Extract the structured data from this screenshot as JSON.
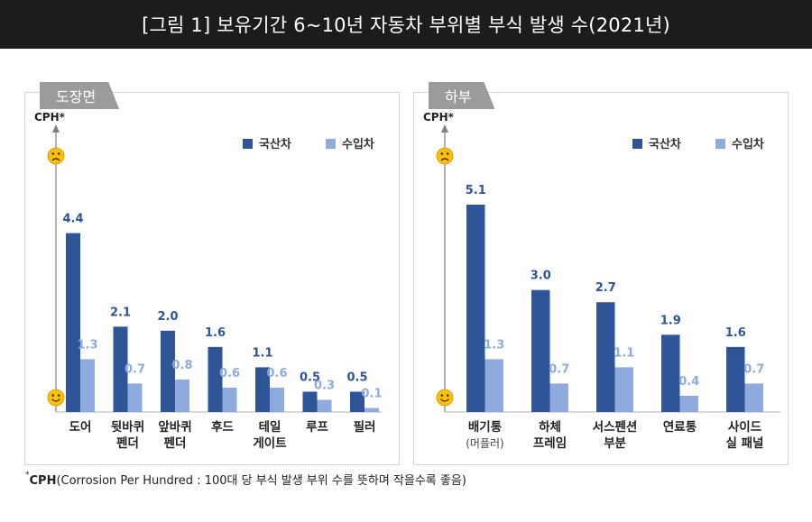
{
  "title": "[그림 1] 보유기간 6~10년 자동차 부위별 부식 발생 수(2021년)",
  "footnote": {
    "star": "*",
    "bold": "CPH",
    "rest": "(Corrosion Per Hundred : 100대 당 부식 발생 부위 수를 뜻하며 작을수록 좋음)"
  },
  "colors": {
    "domestic": "#2d5597",
    "imported": "#8faadc"
  },
  "chart_data": [
    {
      "type": "bar",
      "panel_label": "도장면",
      "ylabel": "CPH*",
      "categories": [
        [
          "도어"
        ],
        [
          "뒷바퀴",
          "펜더"
        ],
        [
          "앞바퀴",
          "펜더"
        ],
        [
          "후드"
        ],
        [
          "테일",
          "게이트"
        ],
        [
          "루프"
        ],
        [
          "필러"
        ]
      ],
      "series": [
        {
          "name": "국산차",
          "values": [
            4.4,
            2.1,
            2.0,
            1.6,
            1.1,
            0.5,
            0.5
          ]
        },
        {
          "name": "수입차",
          "values": [
            1.3,
            0.7,
            0.8,
            0.6,
            0.6,
            0.3,
            0.1
          ]
        }
      ],
      "ylim": [
        0,
        5.1
      ],
      "axis_top_icon": "sad-face-icon",
      "axis_bottom_icon": "smile-face-icon",
      "legend_position": "top-right",
      "grid": false
    },
    {
      "type": "bar",
      "panel_label": "하부",
      "ylabel": "CPH*",
      "categories": [
        [
          "배기통",
          "(머플러)"
        ],
        [
          "하체",
          "프레임"
        ],
        [
          "서스펜션",
          "부분"
        ],
        [
          "연료통"
        ],
        [
          "사이드",
          "실 패널"
        ]
      ],
      "series": [
        {
          "name": "국산차",
          "values": [
            5.1,
            3.0,
            2.7,
            1.9,
            1.6
          ]
        },
        {
          "name": "수입차",
          "values": [
            1.3,
            0.7,
            1.1,
            0.4,
            0.7
          ]
        }
      ],
      "ylim": [
        0,
        5.1
      ],
      "axis_top_icon": "sad-face-icon",
      "axis_bottom_icon": "smile-face-icon",
      "legend_position": "top-right",
      "grid": false
    }
  ]
}
